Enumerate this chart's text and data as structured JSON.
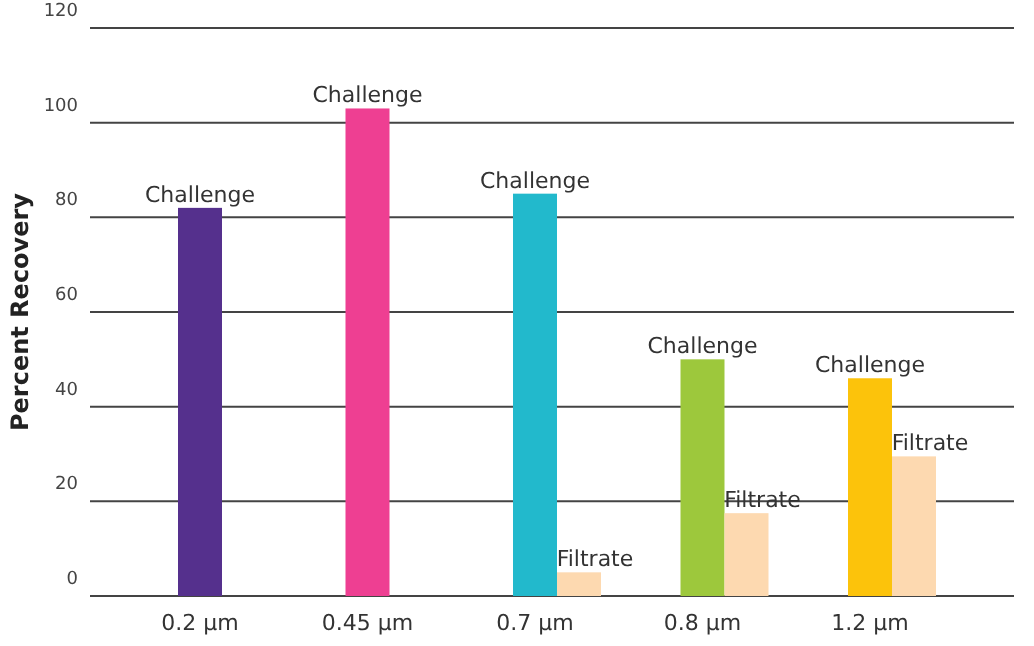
{
  "chart_data": {
    "type": "bar",
    "ylabel": "Percent Recovery",
    "categories": [
      "0.2 µm",
      "0.45 µm",
      "0.7 µm",
      "0.8 µm",
      "1.2 µm"
    ],
    "series": [
      {
        "name": "Challenge",
        "colors": [
          "#55308d",
          "#ee3f92",
          "#22b9cc",
          "#9dc83c",
          "#fcc30b"
        ],
        "values": [
          82,
          103,
          85,
          50,
          46
        ]
      },
      {
        "name": "Filtrate",
        "color": "#fdd9b0",
        "values": [
          null,
          null,
          5,
          17.5,
          29.5
        ]
      }
    ],
    "ylim": [
      0,
      120
    ],
    "yticks": [
      0,
      20,
      40,
      60,
      80,
      100,
      120
    ],
    "grid": "y"
  }
}
